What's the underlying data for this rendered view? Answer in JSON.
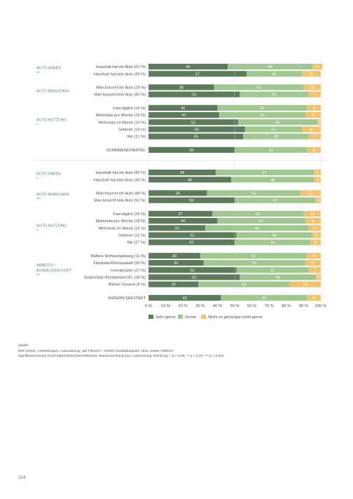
{
  "chart_data": {
    "type": "bar",
    "orientation": "horizontal",
    "stacked": true,
    "xlim": [
      0,
      100
    ],
    "xticks": [
      "0 %",
      "10 %",
      "20 %",
      "30 %",
      "40 %",
      "50 %",
      "60 %",
      "70 %",
      "80 %",
      "90 %",
      "100 %"
    ],
    "legend": {
      "placement": "bottom",
      "entries": [
        "Sehr gerne",
        "Gerne",
        "Nicht so gerne/gar nicht gerne"
      ]
    },
    "colors": [
      "#5d7b5a",
      "#9fc78f",
      "#f2c26d"
    ],
    "sections": [
      {
        "groups": [
          {
            "label": [
              "AUTO HABEN"
            ],
            "sig": "**",
            "rows": [
              {
                "label": "Haushalt hat ein Auto (61 %)",
                "values": [
                  46,
                  49,
                  6
                ]
              },
              {
                "label": "Haushalt hat kein Auto (39 %)",
                "values": [
                  57,
                  32,
                  11
                ]
              }
            ]
          },
          {
            "label": [
              "AUTO BRAUCHEN"
            ],
            "sig": "",
            "rows": [
              {
                "label": "Man braucht ein Auto (18 %)",
                "values": [
                  38,
                  52,
                  10
                ]
              },
              {
                "label": "Man braucht kein Auto (82 %)",
                "values": [
                  53,
                  40,
                  7
                ]
              }
            ]
          },
          {
            "label": [
              "AUTO-NUTZUNG"
            ],
            "sig": "*",
            "rows": [
              {
                "label": "Fast täglich (16 %)",
                "values": [
                  40,
                  52,
                  8
                ]
              },
              {
                "label": "Mehrmals pro Woche (19 %)",
                "values": [
                  41,
                  50,
                  9
                ]
              },
              {
                "label": "Mehrmals im Monat (16 %)",
                "values": [
                  52,
                  46,
                  2
                ]
              },
              {
                "label": "Seltener (18 %)",
                "values": [
                  56,
                  33,
                  11
                ]
              },
              {
                "label": "Nie (31 %)",
                "values": [
                  55,
                  38,
                  7
                ]
              }
            ]
          },
          {
            "label": [],
            "sig": "",
            "rows": [
              {
                "label": "SONNWENDVIERTEL",
                "values": [
                  50,
                  42,
                  8
                ]
              }
            ]
          }
        ]
      },
      {
        "groups": [
          {
            "label": [
              "AUTO HABEN"
            ],
            "sig": "*",
            "rows": [
              {
                "label": "Haushalt hat ein Auto (65 %)",
                "values": [
                  39,
                  57,
                  4
                ]
              },
              {
                "label": "Haushalt hat kein Auto (35 %)",
                "values": [
                  48,
                  48,
                  4
                ]
              }
            ]
          },
          {
            "label": [
              "AUTO BRAUCHEN"
            ],
            "sig": "***",
            "rows": [
              {
                "label": "Man braucht ein Auto (48 %)",
                "values": [
                  34,
                  54,
                  12
                ]
              },
              {
                "label": "Man braucht kein Auto (52 %)",
                "values": [
                  50,
                  47,
                  3
                ]
              }
            ]
          },
          {
            "label": [
              "AUTO-NUTZUNG"
            ],
            "sig": "*",
            "rows": [
              {
                "label": "Fast täglich (25 %)",
                "values": [
                  37,
                  53,
                  10
                ]
              },
              {
                "label": "Mehrmals pro Woche (18 %)",
                "values": [
                  40,
                  51,
                  9
                ]
              },
              {
                "label": "Mehrmals im Monat (15 %)",
                "values": [
                  33,
                  60,
                  7
                ]
              },
              {
                "label": "Seltener (12 %)",
                "values": [
                  51,
                  44,
                  5
                ]
              },
              {
                "label": "Nie (27 %)",
                "values": [
                  50,
                  44,
                  6
                ]
              }
            ]
          },
          {
            "label": [
              "ARBEITS-/",
              "AUSBILDUNGSORT"
            ],
            "sig": "**",
            "rows": [
              {
                "label": "Nähere Wohnumgebung (11 %)",
                "values": [
                  30,
                  62,
                  8
                ]
              },
              {
                "label": "Floridsdorf/Donaustadt (30 %)",
                "values": [
                  32,
                  59,
                  9
                ]
              },
              {
                "label": "Innenbezirke (21 %)",
                "values": [
                  51,
                  42,
                  7
                ]
              },
              {
                "label": "Süden/Süd-/Nordwesten/20. (18 %)",
                "values": [
                  53,
                  44,
                  3
                ]
              },
              {
                "label": "Wiener Umland (8 %)",
                "values": [
                  29,
                  53,
                  18
                ]
              }
            ]
          },
          {
            "label": [],
            "sig": "",
            "rows": [
              {
                "label": "ASPERN SEESTADT",
                "values": [
                  42,
                  50,
                  8
                ]
              }
            ]
          }
        ]
      }
    ]
  },
  "footnotes": {
    "line1": "Quelle:",
    "line2": "WIS (2016). Anmerkungen: Autonutzung: „als Fahrerin“. Arbeits-/Ausbildungsort: ohne „weiter entfernt“.",
    "line3": "Signifikanzniveaus (Auto haben/brauchen/Arbeitsort: Zusammenhang bzw. Autonutzung: Richtung): * p < 0,05; ** p < 0,01; *** p < 0,001."
  },
  "page_number": "114"
}
